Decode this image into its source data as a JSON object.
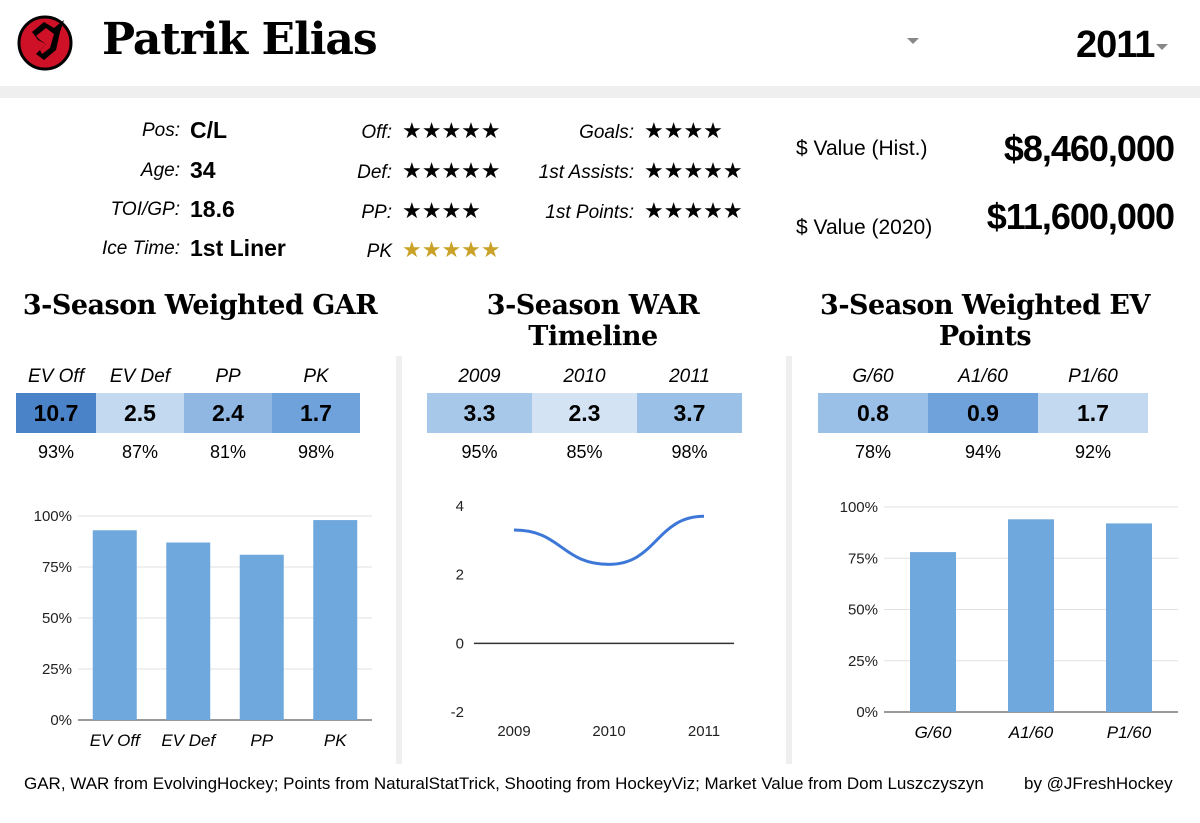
{
  "header": {
    "player_name": "Patrik Elias",
    "season": "2011",
    "colors": {
      "team_red": "#ce1126",
      "dark_bar": "#4a83c8",
      "mid_bar": "#8fb7e2",
      "light_bar": "#c2d9f0",
      "bar_fill": "#6fa8dc",
      "line": "#3d78d8",
      "gold": "#c9a227"
    }
  },
  "info": {
    "pos_label": "Pos:",
    "pos_value": "C/L",
    "age_label": "Age:",
    "age_value": "34",
    "toi_label": "TOI/GP:",
    "toi_value": "18.6",
    "ice_label": "Ice Time:",
    "ice_value": "1st Liner"
  },
  "ratings": {
    "off_label": "Off:",
    "off_stars": "★★★★★",
    "def_label": "Def:",
    "def_stars": "★★★★★",
    "pp_label": "PP:",
    "pp_stars": "★★★★",
    "pk_label": "PK",
    "pk_stars": "★★★★★",
    "goals_label": "Goals:",
    "goals_stars": "★★★★",
    "a1_label": "1st Assists:",
    "a1_stars": "★★★★★",
    "p1_label": "1st Points:",
    "p1_stars": "★★★★★"
  },
  "value": {
    "hist_label": "$ Value (Hist.)",
    "hist_value": "$8,460,000",
    "now_label": "$ Value (2020)",
    "now_value": "$11,600,000"
  },
  "sections": {
    "gar_title": "3-Season Weighted GAR",
    "war_title": "3-Season WAR Timeline",
    "ev_title": "3-Season Weighted EV Points"
  },
  "gar_table": {
    "headers": [
      "EV Off",
      "EV Def",
      "PP",
      "PK"
    ],
    "values": [
      "10.7",
      "2.5",
      "2.4",
      "1.7"
    ],
    "percentiles": [
      "93%",
      "87%",
      "81%",
      "98%"
    ]
  },
  "war_table": {
    "headers": [
      "2009",
      "2010",
      "2011"
    ],
    "values": [
      "3.3",
      "2.3",
      "3.7"
    ],
    "percentiles": [
      "95%",
      "85%",
      "98%"
    ]
  },
  "ev_table": {
    "headers": [
      "G/60",
      "A1/60",
      "P1/60"
    ],
    "values": [
      "0.8",
      "0.9",
      "1.7"
    ],
    "percentiles": [
      "78%",
      "94%",
      "92%"
    ]
  },
  "chart_data": [
    {
      "type": "bar",
      "title": "3-Season Weighted GAR",
      "categories": [
        "EV Off",
        "EV Def",
        "PP",
        "PK"
      ],
      "values": [
        93,
        87,
        81,
        98
      ],
      "ylim": [
        0,
        100
      ],
      "yticks": [
        "0%",
        "25%",
        "50%",
        "75%",
        "100%"
      ],
      "xlabel": "",
      "ylabel": ""
    },
    {
      "type": "line",
      "title": "3-Season WAR Timeline",
      "x": [
        "2009",
        "2010",
        "2011"
      ],
      "values": [
        3.3,
        2.3,
        3.7
      ],
      "ylim": [
        -2,
        4
      ],
      "yticks": [
        "-2",
        "0",
        "2",
        "4"
      ],
      "xlabel": "",
      "ylabel": ""
    },
    {
      "type": "bar",
      "title": "3-Season Weighted EV Points",
      "categories": [
        "G/60",
        "A1/60",
        "P1/60"
      ],
      "values": [
        78,
        94,
        92
      ],
      "ylim": [
        0,
        100
      ],
      "yticks": [
        "0%",
        "25%",
        "50%",
        "75%",
        "100%"
      ],
      "xlabel": "",
      "ylabel": ""
    }
  ],
  "footer": {
    "sources": "GAR, WAR from EvolvingHockey; Points from NaturalStatTrick, Shooting from HockeyViz; Market Value from Dom Luszczyszyn",
    "credit": "by @JFreshHockey"
  }
}
